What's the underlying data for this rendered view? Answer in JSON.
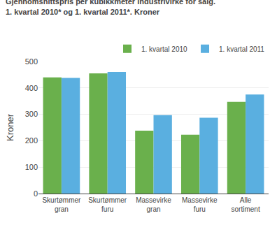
{
  "chart_data": {
    "type": "bar",
    "title": "Gjennomsnittspris per kubikkmeter industrivirke for salg.",
    "subtitle": "1. kvartal 2010* og 1. kvartal 2011*. Kroner",
    "ylabel": "Kroner",
    "categories": [
      "Skurtømmer\ngran",
      "Skurtømmer\nfuru",
      "Massevirke\ngran",
      "Massevirke\nfuru",
      "Alle\nsortiment"
    ],
    "series": [
      {
        "name": "1. kvartal 2010",
        "color": "#6ab04c",
        "values": [
          440,
          455,
          238,
          223,
          347
        ]
      },
      {
        "name": "1. kvartal 2011",
        "color": "#5aafe0",
        "values": [
          438,
          460,
          297,
          287,
          375
        ]
      }
    ],
    "ylim": [
      0,
      500
    ],
    "yticks": [
      0,
      100,
      200,
      300,
      400,
      500
    ],
    "grid": true,
    "legend": "upper right"
  }
}
